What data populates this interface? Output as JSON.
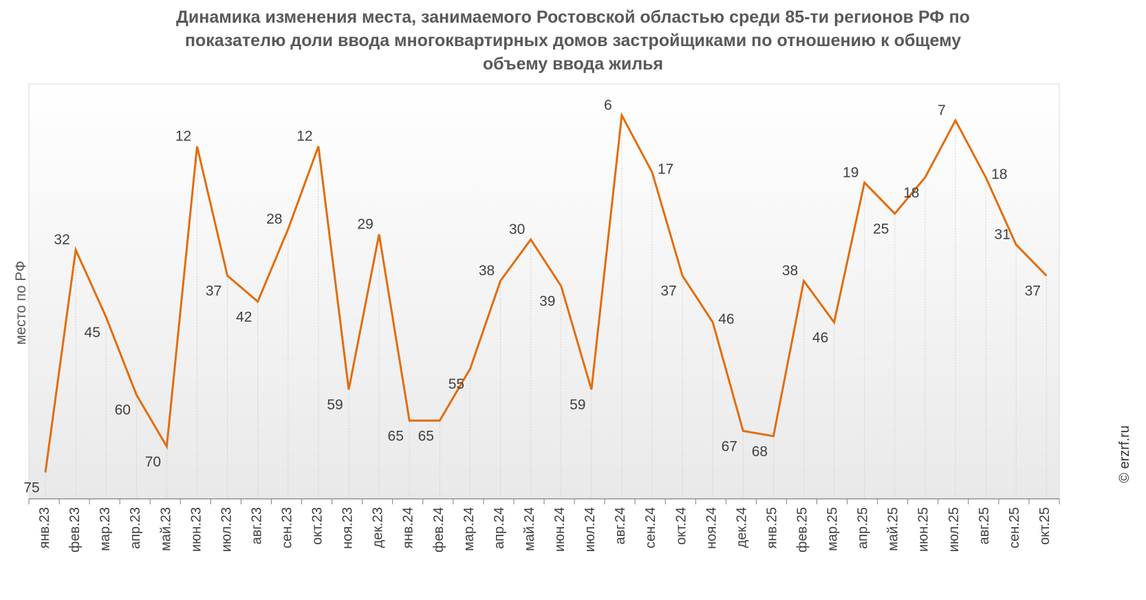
{
  "chart_data": {
    "type": "line",
    "title_lines": [
      "Динамика изменения места, занимаемого Ростовской областью среди 85-ти регионов РФ по",
      "показателю доли ввода многоквартирных домов застройщиками по отношению к общему",
      "объему ввода жилья"
    ],
    "ylabel": "место по РФ",
    "xlabel": "",
    "y_inverted": true,
    "ylim": [
      2,
      79
    ],
    "grid": "vertical dotted",
    "categories": [
      "янв.23",
      "фев.23",
      "мар.23",
      "апр.23",
      "май.23",
      "июн.23",
      "июл.23",
      "авг.23",
      "сен.23",
      "окт.23",
      "ноя.23",
      "дек.23",
      "янв.24",
      "фев.24",
      "мар.24",
      "апр.24",
      "май.24",
      "июн.24",
      "июл.24",
      "авг.24",
      "сен.24",
      "окт.24",
      "ноя.24",
      "дек.24",
      "янв.25",
      "фев.25",
      "мар.25",
      "апр.25",
      "май.25",
      "июн.25",
      "июл.25",
      "авг.25",
      "сен.25",
      "окт.25"
    ],
    "series": [
      {
        "values": [
          75,
          32,
          45,
          60,
          70,
          12,
          37,
          42,
          28,
          12,
          59,
          29,
          65,
          65,
          55,
          38,
          30,
          39,
          59,
          6,
          17,
          37,
          46,
          67,
          68,
          38,
          46,
          19,
          25,
          18,
          7,
          18,
          31,
          37
        ],
        "label_positions": [
          "below",
          "above",
          "below",
          "below",
          "below",
          "above",
          "below",
          "below",
          "above",
          "above",
          "below",
          "above",
          "below",
          "below",
          "below",
          "above",
          "above",
          "below",
          "below",
          "above",
          "right",
          "below",
          "right",
          "below",
          "below",
          "above",
          "below",
          "above",
          "below",
          "below",
          "above",
          "right",
          "above",
          "below"
        ]
      }
    ],
    "line_color": "#E36C0A"
  },
  "source_label": "© erzrf.ru"
}
